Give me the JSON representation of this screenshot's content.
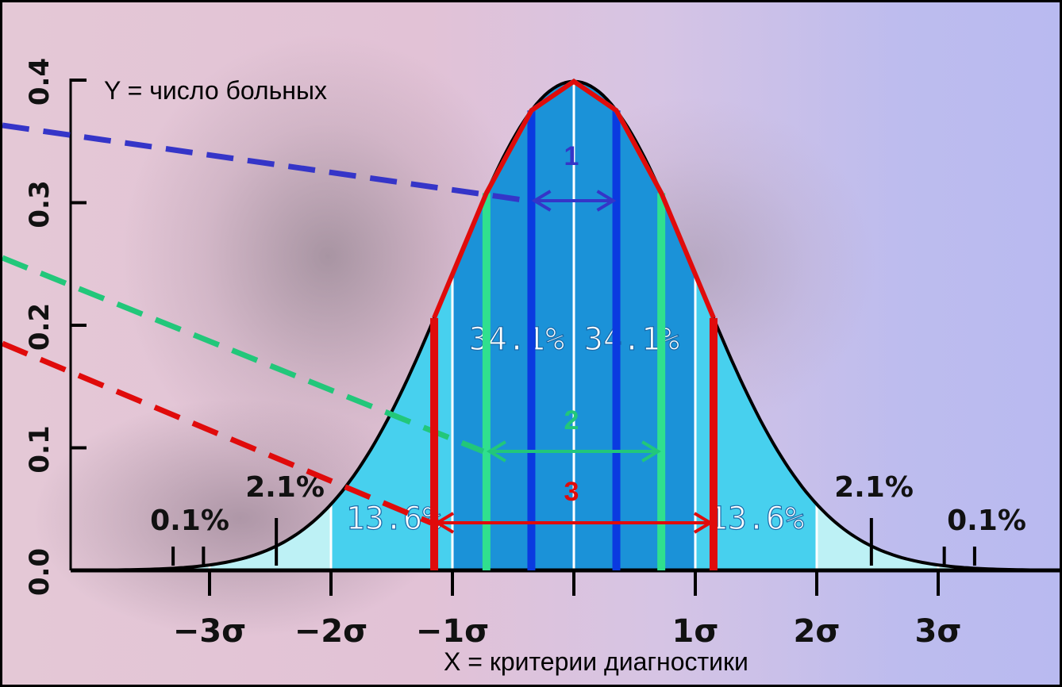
{
  "chart_data": {
    "type": "area",
    "ylabel": "Y = число больных",
    "xlabel": "X = критерии диагностики",
    "ylim": [
      0.0,
      0.4
    ],
    "xlim": [
      -4.1,
      4.1
    ],
    "y_ticks": [
      "0.0",
      "0.1",
      "0.2",
      "0.3",
      "0.4"
    ],
    "x_ticks": [
      {
        "value": -3,
        "label": "−3σ"
      },
      {
        "value": -2,
        "label": "−2σ"
      },
      {
        "value": -1,
        "label": "−1σ"
      },
      {
        "value": 1,
        "label": "1σ"
      },
      {
        "value": 2,
        "label": "2σ"
      },
      {
        "value": 3,
        "label": "3σ"
      }
    ],
    "regions": [
      {
        "from": -3,
        "to": -2,
        "percent": "2.1%"
      },
      {
        "from": -2,
        "to": -1,
        "percent": "13.6%"
      },
      {
        "from": -1,
        "to": 0,
        "percent": "34.1%"
      },
      {
        "from": 0,
        "to": 1,
        "percent": "34.1%"
      },
      {
        "from": 1,
        "to": 2,
        "percent": "13.6%"
      },
      {
        "from": 2,
        "to": 3,
        "percent": "2.1%"
      },
      {
        "from": 3,
        "to": 4,
        "percent": "0.1%"
      },
      {
        "from": -4,
        "to": -3,
        "percent": "0.1%"
      }
    ],
    "colors": {
      "dark_region": "#1b92d8",
      "mid_region": "#47d0ee",
      "light_region": "#bdf1f5",
      "curve": "#000000"
    },
    "intervals": [
      {
        "label": "1",
        "from": -0.35,
        "to": 0.35,
        "color": "#3535c8",
        "line_color": "#0a3ae0"
      },
      {
        "label": "2",
        "from": -0.72,
        "to": 0.72,
        "color": "#22c77a",
        "line_color": "#30e08e"
      },
      {
        "label": "3",
        "from": -1.15,
        "to": 1.15,
        "color": "#e00b0b",
        "line_color": "#e00b0b"
      }
    ]
  }
}
